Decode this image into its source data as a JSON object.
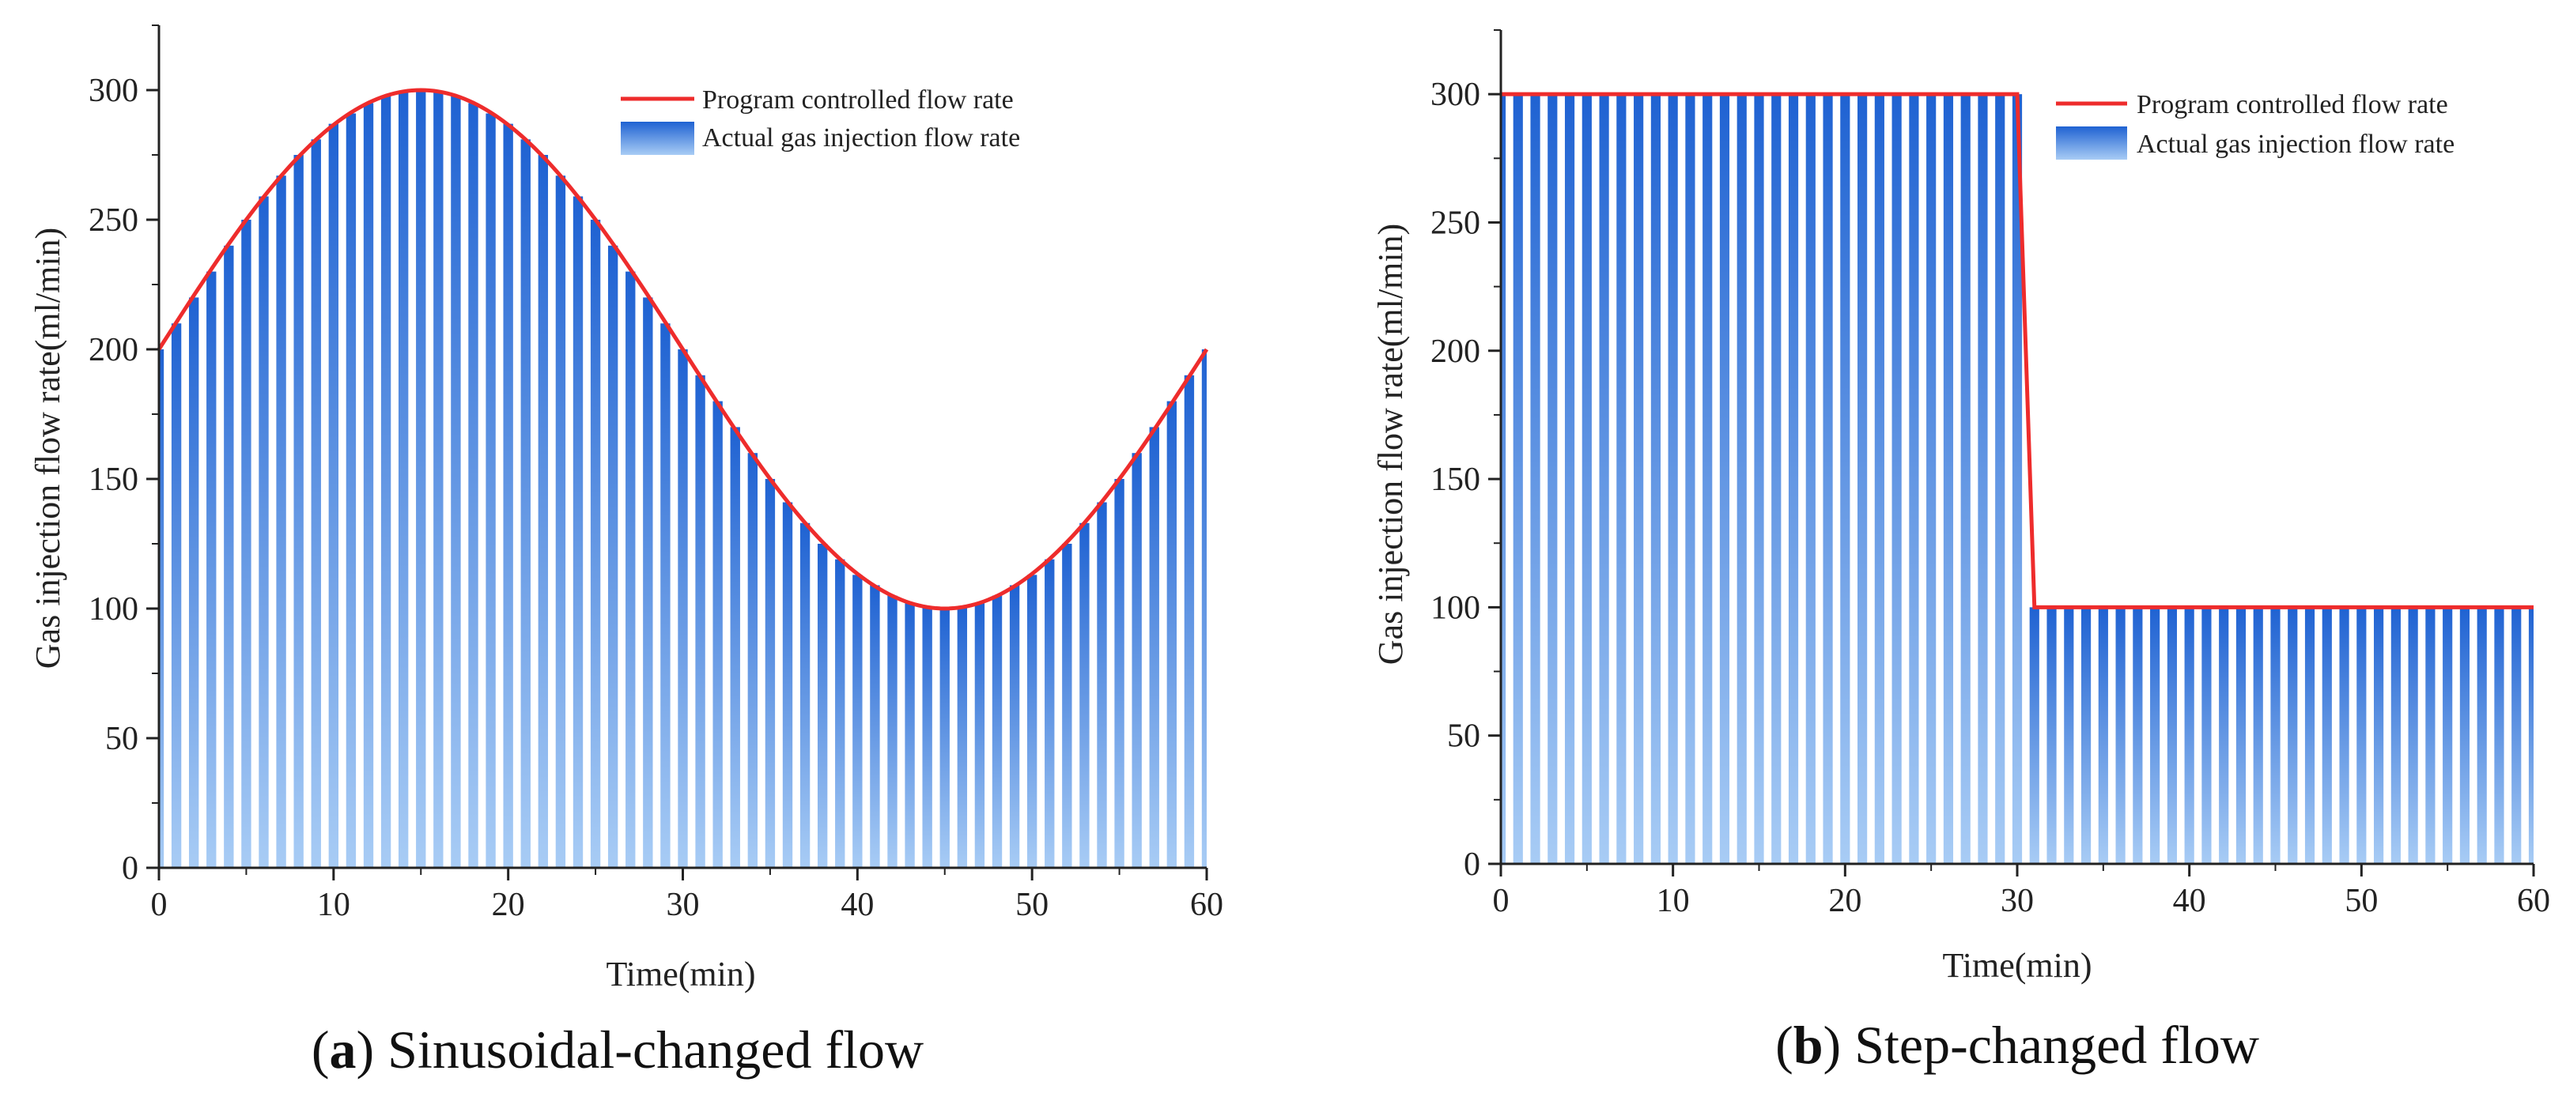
{
  "colors": {
    "line": "#ee2c2c",
    "bar_top": "#1f62d2",
    "bar_bottom": "#a8ccf5",
    "axis": "#222222"
  },
  "chart_data": [
    {
      "type": "bar",
      "caption_letter": "a",
      "caption_text": "Sinusoidal-changed flow",
      "xlabel": "Time(min)",
      "ylabel": "Gas injection flow rate(ml/min)",
      "xlim": [
        0,
        60
      ],
      "ylim": [
        0,
        325
      ],
      "xticks": [
        0,
        10,
        20,
        30,
        40,
        50,
        60
      ],
      "yticks": [
        0,
        50,
        100,
        150,
        200,
        250,
        300
      ],
      "legend": {
        "position": "top-right",
        "line_label": "Program controlled flow rate",
        "bar_label": "Actual gas injection flow rate"
      },
      "series": [
        {
          "name": "Program controlled flow rate",
          "kind": "line",
          "function": "sinusoid",
          "mean": 200,
          "amplitude": 100,
          "period": 60
        },
        {
          "name": "Actual gas injection flow rate",
          "kind": "bar",
          "x": [
            0,
            1,
            2,
            3,
            4,
            5,
            6,
            7,
            8,
            9,
            10,
            11,
            12,
            13,
            14,
            15,
            16,
            17,
            18,
            19,
            20,
            21,
            22,
            23,
            24,
            25,
            26,
            27,
            28,
            29,
            30,
            31,
            32,
            33,
            34,
            35,
            36,
            37,
            38,
            39,
            40,
            41,
            42,
            43,
            44,
            45,
            46,
            47,
            48,
            49,
            50,
            51,
            52,
            53,
            54,
            55,
            56,
            57,
            58,
            59,
            60
          ],
          "values": [
            200,
            210,
            220,
            230,
            240,
            250,
            259,
            267,
            275,
            281,
            287,
            291,
            295,
            298,
            299,
            300,
            299,
            298,
            295,
            291,
            287,
            281,
            275,
            267,
            259,
            250,
            240,
            230,
            220,
            210,
            200,
            190,
            180,
            170,
            160,
            150,
            141,
            133,
            125,
            119,
            113,
            109,
            105,
            102,
            101,
            100,
            101,
            102,
            105,
            109,
            113,
            119,
            125,
            133,
            141,
            150,
            160,
            170,
            180,
            190,
            200
          ]
        }
      ]
    },
    {
      "type": "bar",
      "caption_letter": "b",
      "caption_text": "Step-changed flow",
      "xlabel": "Time(min)",
      "ylabel": "Gas injection flow rate(ml/min)",
      "xlim": [
        0,
        60
      ],
      "ylim": [
        0,
        325
      ],
      "xticks": [
        0,
        10,
        20,
        30,
        40,
        50,
        60
      ],
      "yticks": [
        0,
        50,
        100,
        150,
        200,
        250,
        300
      ],
      "legend": {
        "position": "top-right",
        "line_label": "Program controlled flow rate",
        "bar_label": "Actual gas injection flow rate"
      },
      "series": [
        {
          "name": "Program controlled flow rate",
          "kind": "line",
          "function": "step",
          "high": 300,
          "low": 100,
          "step_start": 30,
          "step_end": 31
        },
        {
          "name": "Actual gas injection flow rate",
          "kind": "bar",
          "x": [
            0,
            1,
            2,
            3,
            4,
            5,
            6,
            7,
            8,
            9,
            10,
            11,
            12,
            13,
            14,
            15,
            16,
            17,
            18,
            19,
            20,
            21,
            22,
            23,
            24,
            25,
            26,
            27,
            28,
            29,
            30,
            31,
            32,
            33,
            34,
            35,
            36,
            37,
            38,
            39,
            40,
            41,
            42,
            43,
            44,
            45,
            46,
            47,
            48,
            49,
            50,
            51,
            52,
            53,
            54,
            55,
            56,
            57,
            58,
            59,
            60
          ],
          "values": [
            300,
            300,
            300,
            300,
            300,
            300,
            300,
            300,
            300,
            300,
            300,
            300,
            300,
            300,
            300,
            300,
            300,
            300,
            300,
            300,
            300,
            300,
            300,
            300,
            300,
            300,
            300,
            300,
            300,
            300,
            300,
            100,
            100,
            100,
            100,
            100,
            100,
            100,
            100,
            100,
            100,
            100,
            100,
            100,
            100,
            100,
            100,
            100,
            100,
            100,
            100,
            100,
            100,
            100,
            100,
            100,
            100,
            100,
            100,
            100,
            100
          ]
        }
      ]
    }
  ]
}
